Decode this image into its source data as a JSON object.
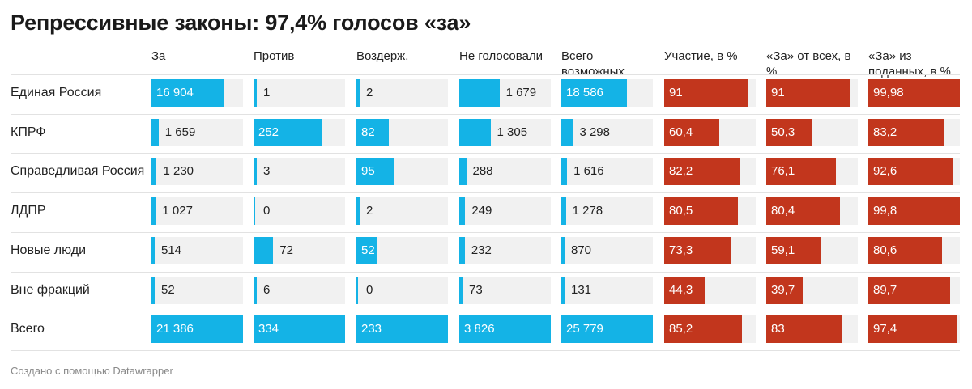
{
  "title": "Репрессивные законы: 97,4% голосов «за»",
  "footer": "Создано с помощью Datawrapper",
  "colors": {
    "blue": "#14b3e6",
    "red": "#c2361d",
    "cell_bg": "#f1f1f1",
    "text_dark": "#222222",
    "text_light": "#ffffff"
  },
  "chart_data": {
    "type": "table",
    "title": "Репрессивные законы: 97,4% голосов «за»",
    "columns": [
      {
        "key": "za",
        "label": "За",
        "color": "blue",
        "max": 21386
      },
      {
        "key": "protiv",
        "label": "Против",
        "color": "blue",
        "max": 334
      },
      {
        "key": "vozderzh",
        "label": "Воздерж.",
        "color": "blue",
        "max": 233
      },
      {
        "key": "ne_golos",
        "label": "Не голосовали",
        "color": "blue",
        "max": 3826
      },
      {
        "key": "vsego_vozm",
        "label": "Всего возможных",
        "color": "blue",
        "max": 25779
      },
      {
        "key": "uchastie",
        "label": "Участие, в %",
        "color": "red",
        "max": 100
      },
      {
        "key": "za_ot_vseh",
        "label": "«За» от всех, в %",
        "color": "red",
        "max": 100
      },
      {
        "key": "za_iz_podannyh",
        "label": "«За» из поданных, в %",
        "color": "red",
        "max": 100
      }
    ],
    "rows": [
      {
        "label": "Единая Россия",
        "values": [
          16904,
          1,
          2,
          1679,
          18586,
          91,
          91,
          99.98
        ],
        "display": [
          "16 904",
          "1",
          "2",
          "1 679",
          "18 586",
          "91",
          "91",
          "99,98"
        ]
      },
      {
        "label": "КПРФ",
        "values": [
          1659,
          252,
          82,
          1305,
          3298,
          60.4,
          50.3,
          83.2
        ],
        "display": [
          "1 659",
          "252",
          "82",
          "1 305",
          "3 298",
          "60,4",
          "50,3",
          "83,2"
        ]
      },
      {
        "label": "Справедливая Россия",
        "values": [
          1230,
          3,
          95,
          288,
          1616,
          82.2,
          76.1,
          92.6
        ],
        "display": [
          "1 230",
          "3",
          "95",
          "288",
          "1 616",
          "82,2",
          "76,1",
          "92,6"
        ]
      },
      {
        "label": "ЛДПР",
        "values": [
          1027,
          0,
          2,
          249,
          1278,
          80.5,
          80.4,
          99.8
        ],
        "display": [
          "1 027",
          "0",
          "2",
          "249",
          "1 278",
          "80,5",
          "80,4",
          "99,8"
        ]
      },
      {
        "label": "Новые люди",
        "values": [
          514,
          72,
          52,
          232,
          870,
          73.3,
          59.1,
          80.6
        ],
        "display": [
          "514",
          "72",
          "52",
          "232",
          "870",
          "73,3",
          "59,1",
          "80,6"
        ]
      },
      {
        "label": "Вне фракций",
        "values": [
          52,
          6,
          0,
          73,
          131,
          44.3,
          39.7,
          89.7
        ],
        "display": [
          "52",
          "6",
          "0",
          "73",
          "131",
          "44,3",
          "39,7",
          "89,7"
        ]
      },
      {
        "label": "Всего",
        "values": [
          21386,
          334,
          233,
          3826,
          25779,
          85.2,
          83,
          97.4
        ],
        "display": [
          "21 386",
          "334",
          "233",
          "3 826",
          "25 779",
          "85,2",
          "83",
          "97,4"
        ]
      }
    ]
  }
}
